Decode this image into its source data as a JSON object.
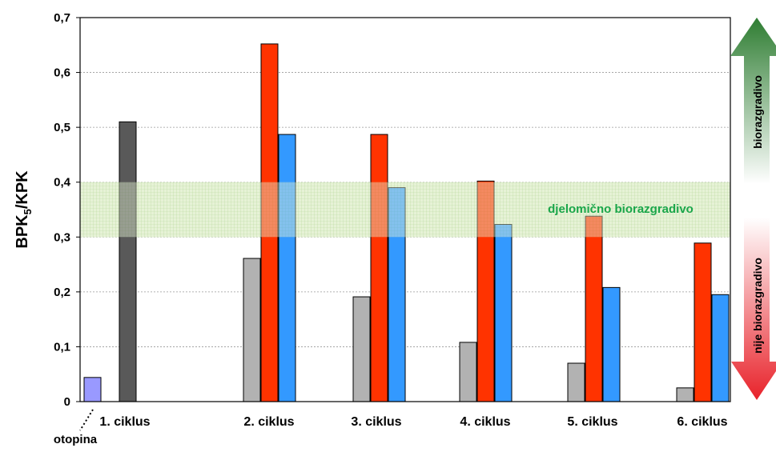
{
  "chart_data": {
    "type": "bar",
    "ylabel_main": "BPK",
    "ylabel_sub": "5",
    "ylabel_rest": "/KPK",
    "ylim": [
      0,
      0.7
    ],
    "y_ticks": [
      "0",
      "0,1",
      "0,2",
      "0,3",
      "0,4",
      "0,5",
      "0,6",
      "0,7"
    ],
    "y_tick_values": [
      0,
      0.1,
      0.2,
      0.3,
      0.4,
      0.5,
      0.6,
      0.7
    ],
    "grid": "horizontal-dashed",
    "categories": [
      "1. ciklus",
      "2. ciklus",
      "3. ciklus",
      "4. ciklus",
      "5. ciklus",
      "6. ciklus"
    ],
    "bars": [
      {
        "group": 0,
        "slot": 0,
        "value": 0.044,
        "color": "#9999ff"
      },
      {
        "group": 0,
        "slot": 2,
        "value": 0.51,
        "color": "#595959"
      },
      {
        "group": 1,
        "slot": 0,
        "value": 0.261,
        "color": "#b2b2b2"
      },
      {
        "group": 1,
        "slot": 1,
        "value": 0.652,
        "color": "#ff3300"
      },
      {
        "group": 1,
        "slot": 2,
        "value": 0.487,
        "color": "#3399ff"
      },
      {
        "group": 2,
        "slot": 0,
        "value": 0.191,
        "color": "#b2b2b2"
      },
      {
        "group": 2,
        "slot": 1,
        "value": 0.487,
        "color": "#ff3300"
      },
      {
        "group": 2,
        "slot": 2,
        "value": 0.39,
        "color": "#3399ff"
      },
      {
        "group": 3,
        "slot": 0,
        "value": 0.108,
        "color": "#b2b2b2"
      },
      {
        "group": 3,
        "slot": 1,
        "value": 0.402,
        "color": "#ff3300"
      },
      {
        "group": 3,
        "slot": 2,
        "value": 0.323,
        "color": "#3399ff"
      },
      {
        "group": 4,
        "slot": 0,
        "value": 0.07,
        "color": "#b2b2b2"
      },
      {
        "group": 4,
        "slot": 1,
        "value": 0.338,
        "color": "#ff3300"
      },
      {
        "group": 4,
        "slot": 2,
        "value": 0.208,
        "color": "#3399ff"
      },
      {
        "group": 5,
        "slot": 0,
        "value": 0.025,
        "color": "#b2b2b2"
      },
      {
        "group": 5,
        "slot": 1,
        "value": 0.289,
        "color": "#ff3300"
      },
      {
        "group": 5,
        "slot": 2,
        "value": 0.195,
        "color": "#3399ff"
      }
    ],
    "band": {
      "from": 0.3,
      "to": 0.4,
      "label": "djelomično biorazgradivo",
      "color": "#d9ecc4"
    },
    "annotation": {
      "label": "otopina",
      "points_to_group": 0,
      "points_to_slot": 0
    },
    "side_arrows": {
      "up_label": "biorazgradivo",
      "up_color": "#2e8b3a",
      "down_label": "nije biorazgradivo",
      "down_color": "#ee2a2a"
    }
  }
}
